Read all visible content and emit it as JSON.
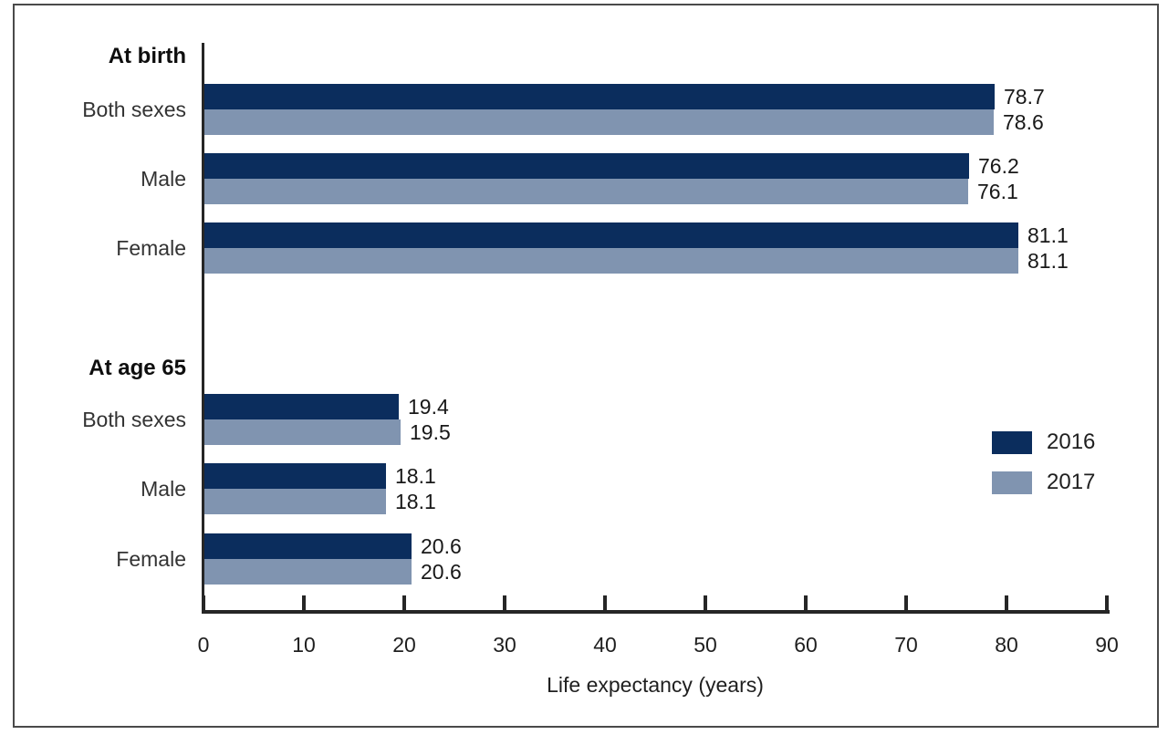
{
  "chart_data": {
    "type": "bar",
    "orientation": "horizontal",
    "xlabel": "Life expectancy (years)",
    "xlim": [
      0,
      90
    ],
    "x_ticks": [
      0,
      10,
      20,
      30,
      40,
      50,
      60,
      70,
      80,
      90
    ],
    "grid": false,
    "legend_position": "right-middle",
    "legend": [
      {
        "name": "2016",
        "color": "#0b2d5d"
      },
      {
        "name": "2017",
        "color": "#8094b0"
      }
    ],
    "groups": [
      {
        "heading": "At birth",
        "rows": [
          {
            "label": "Both sexes",
            "values": [
              78.7,
              78.6
            ]
          },
          {
            "label": "Male",
            "values": [
              76.2,
              76.1
            ]
          },
          {
            "label": "Female",
            "values": [
              81.1,
              81.1
            ]
          }
        ]
      },
      {
        "heading": "At age 65",
        "rows": [
          {
            "label": "Both sexes",
            "values": [
              19.4,
              19.5
            ]
          },
          {
            "label": "Male",
            "values": [
              18.1,
              18.1
            ]
          },
          {
            "label": "Female",
            "values": [
              20.6,
              20.6
            ]
          }
        ]
      }
    ]
  },
  "colors": {
    "series_2016": "#0b2d5d",
    "series_2017": "#8094b0",
    "axis": "#262626",
    "frame_border": "#4a4a4a",
    "text": "#1f1f1f"
  }
}
